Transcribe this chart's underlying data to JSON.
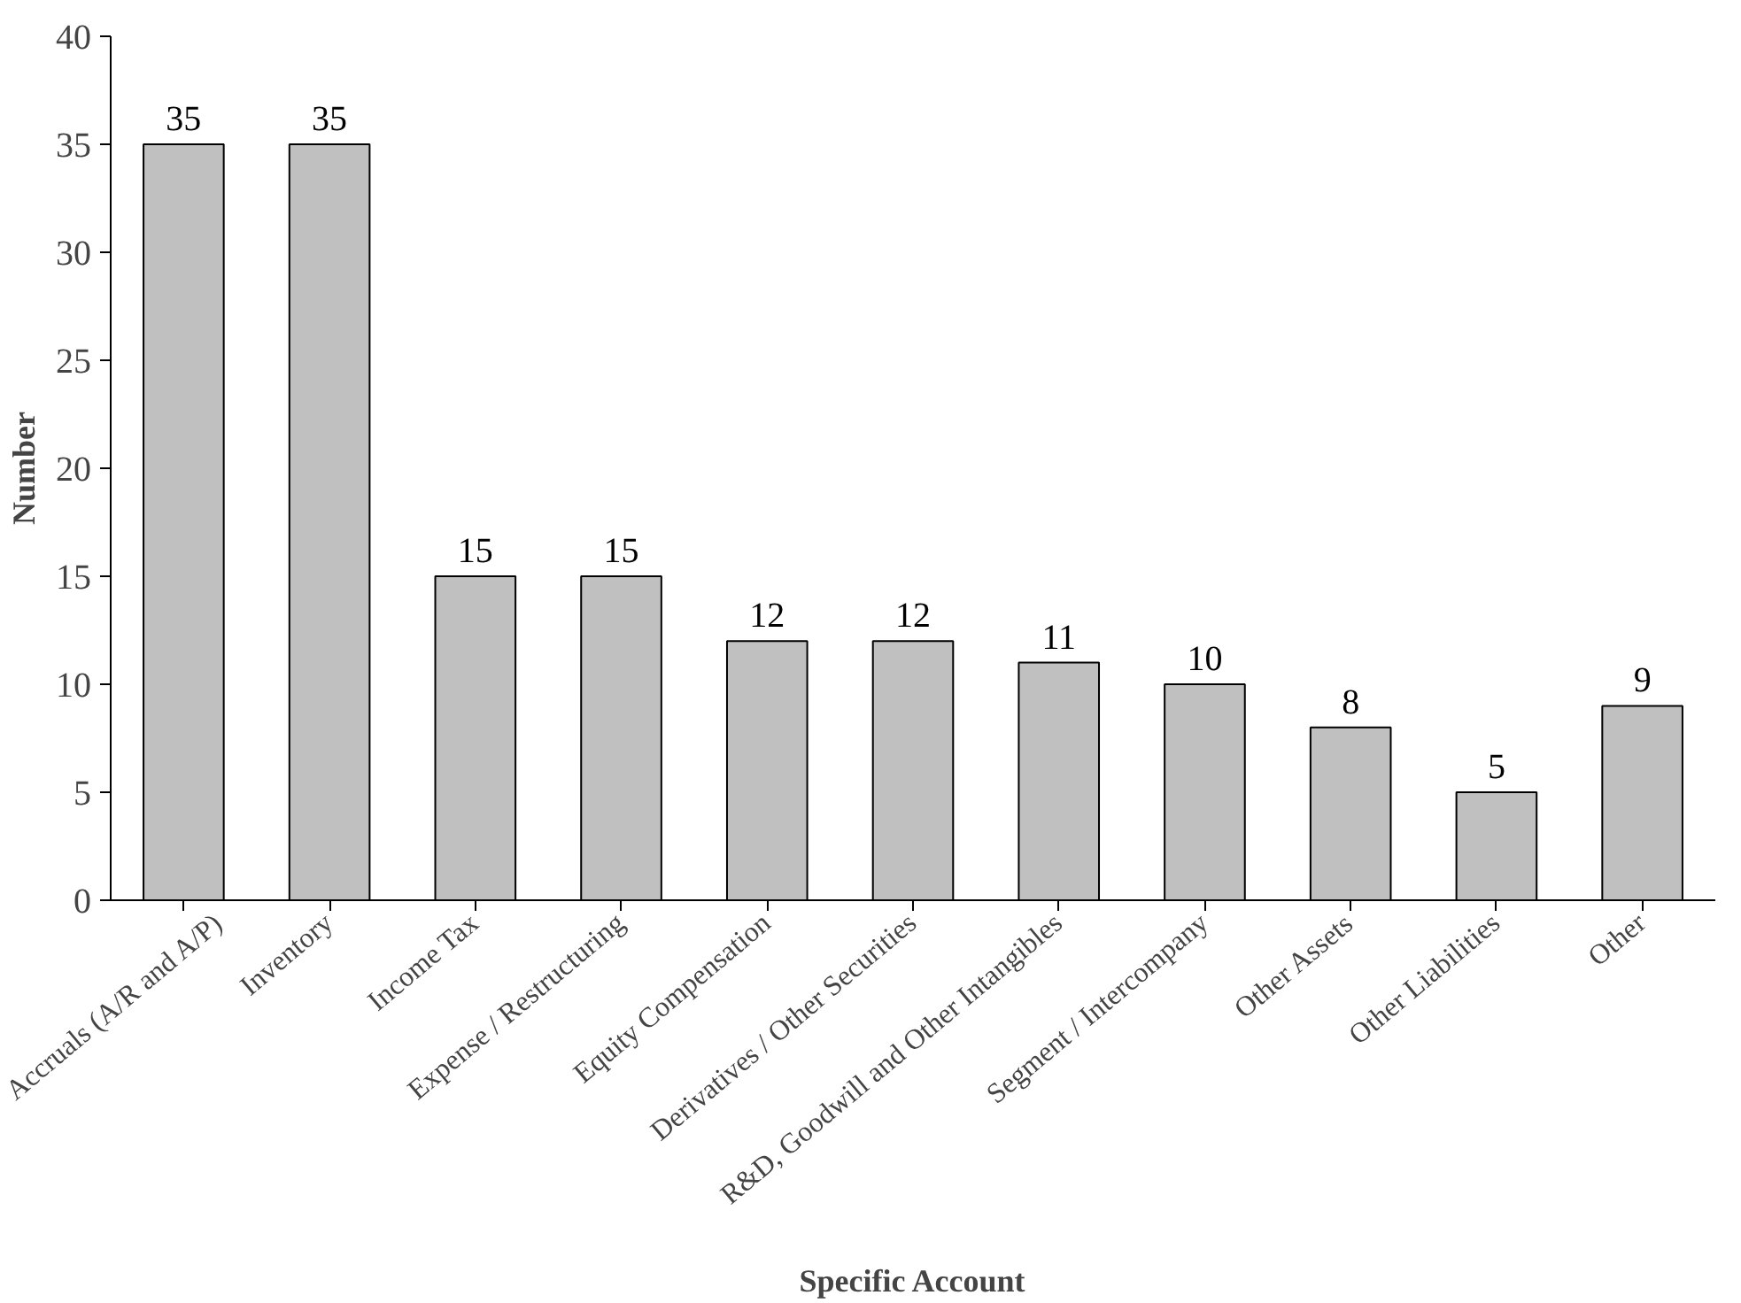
{
  "chart_data": {
    "type": "bar",
    "xlabel": "Specific Account",
    "ylabel": "Number",
    "categories": [
      "Accruals (A/R and A/P)",
      "Inventory",
      "Income Tax",
      "Expense / Restructuring",
      "Equity Compensation",
      "Derivatives / Other Securities",
      "R&D, Goodwill and Other Intangibles",
      "Segment / Intercompany",
      "Other Assets",
      "Other Liabilities",
      "Other"
    ],
    "values": [
      35,
      35,
      15,
      15,
      12,
      12,
      11,
      10,
      8,
      5,
      9
    ],
    "color": "#c0c0c0",
    "ylim": [
      0,
      40
    ],
    "yticks": [
      0,
      5,
      10,
      15,
      20,
      25,
      30,
      35,
      40
    ],
    "data_labels": true
  }
}
